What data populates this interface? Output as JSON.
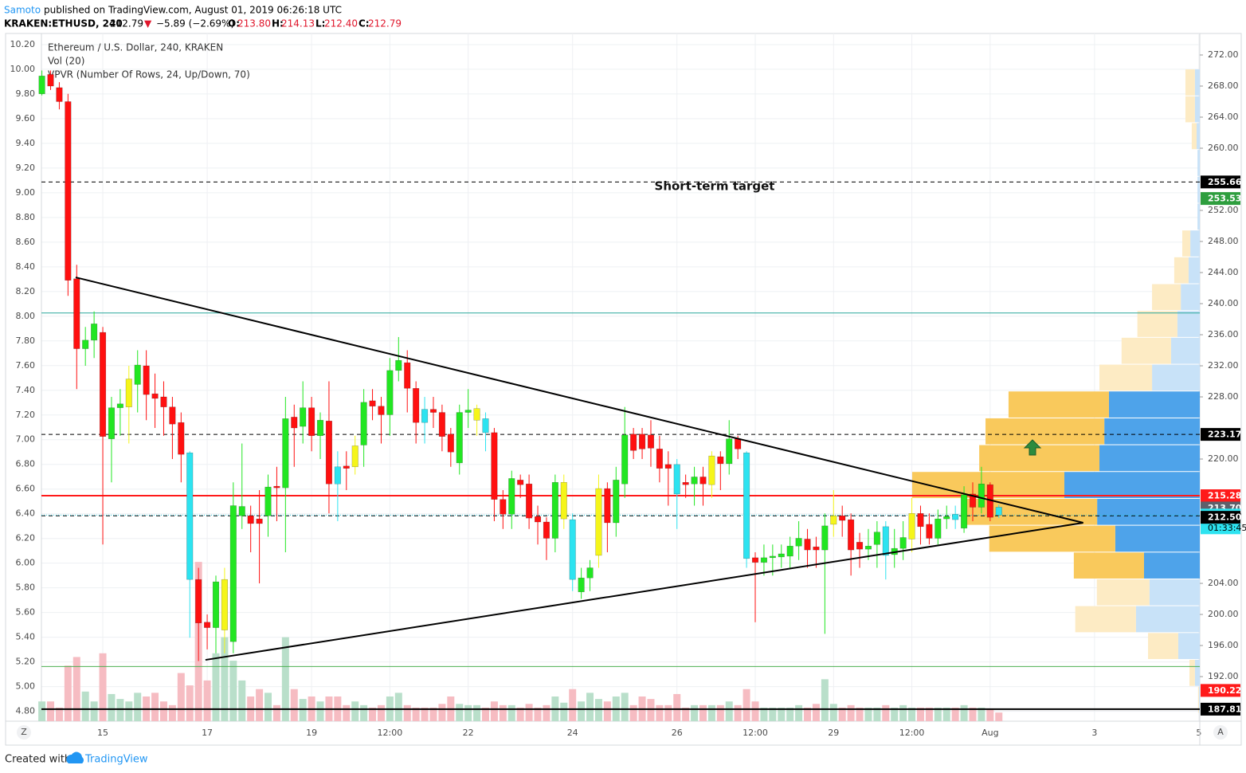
{
  "header": {
    "author": "Samoto",
    "published": "published on TradingView.com, August 01, 2019 06:26:18 UTC",
    "symbol": "KRAKEN:ETHUSD, 240",
    "last": "212.79",
    "arrow": "▼",
    "change": "−5.89 (−2.69%)",
    "ohlc": [
      {
        "key": "O:",
        "value": "213.80"
      },
      {
        "key": "H:",
        "value": "214.13"
      },
      {
        "key": "L:",
        "value": "212.40"
      },
      {
        "key": "C:",
        "value": "212.79"
      }
    ]
  },
  "chart_data": {
    "type": "candlestick",
    "legend": [
      "Ethereum / U.S. Dollar, 240, KRAKEN",
      "Vol (20)",
      "VPVR (Number Of Rows, 24, Up/Down, 70)"
    ],
    "annotation": "Short-term target",
    "xlim": [
      0,
      133.1
    ],
    "xticks": [
      {
        "value": 7,
        "label": "15"
      },
      {
        "value": 19,
        "label": "17"
      },
      {
        "value": 31,
        "label": "19"
      },
      {
        "value": 40,
        "label": "12:00"
      },
      {
        "value": 49,
        "label": "22"
      },
      {
        "value": 61,
        "label": "24"
      },
      {
        "value": 73,
        "label": "26"
      },
      {
        "value": 82,
        "label": "12:00"
      },
      {
        "value": 91,
        "label": "29"
      },
      {
        "value": 100,
        "label": "12:00"
      },
      {
        "value": 109,
        "label": "Aug"
      },
      {
        "value": 121,
        "label": "3"
      },
      {
        "value": 133,
        "label": "5"
      }
    ],
    "ylim": [
      186.26,
      274.77
    ],
    "yticks": [
      {
        "value": 192,
        "label": "192.00"
      },
      {
        "value": 196,
        "label": "196.00"
      },
      {
        "value": 200,
        "label": "200.00"
      },
      {
        "value": 204,
        "label": "204.00"
      },
      {
        "value": 220,
        "label": "220.00"
      },
      {
        "value": 228,
        "label": "228.00"
      },
      {
        "value": 232,
        "label": "232.00"
      },
      {
        "value": 236,
        "label": "236.00"
      },
      {
        "value": 240,
        "label": "240.00"
      },
      {
        "value": 244,
        "label": "244.00"
      },
      {
        "value": 248,
        "label": "248.00"
      },
      {
        "value": 252,
        "label": "252.00"
      },
      {
        "value": 260,
        "label": "260.00"
      },
      {
        "value": 264,
        "label": "264.00"
      },
      {
        "value": 268,
        "label": "268.00"
      },
      {
        "value": 272,
        "label": "272.00"
      }
    ],
    "y2lim": [
      4.72,
      10.29
    ],
    "y2ticks": [
      {
        "value": 4.8,
        "label": "4.80"
      },
      {
        "value": 5.0,
        "label": "5.00"
      },
      {
        "value": 5.2,
        "label": "5.20"
      },
      {
        "value": 5.4,
        "label": "5.40"
      },
      {
        "value": 5.6,
        "label": "5.60"
      },
      {
        "value": 5.8,
        "label": "5.80"
      },
      {
        "value": 6.0,
        "label": "6.00"
      },
      {
        "value": 6.2,
        "label": "6.20"
      },
      {
        "value": 6.4,
        "label": "6.40"
      },
      {
        "value": 6.6,
        "label": "6.60"
      },
      {
        "value": 6.8,
        "label": "6.80"
      },
      {
        "value": 7.0,
        "label": "7.00"
      },
      {
        "value": 7.2,
        "label": "7.20"
      },
      {
        "value": 7.4,
        "label": "7.40"
      },
      {
        "value": 7.6,
        "label": "7.60"
      },
      {
        "value": 7.8,
        "label": "7.80"
      },
      {
        "value": 8.0,
        "label": "8.00"
      },
      {
        "value": 8.2,
        "label": "8.20"
      },
      {
        "value": 8.4,
        "label": "8.40"
      },
      {
        "value": 8.6,
        "label": "8.60"
      },
      {
        "value": 8.8,
        "label": "8.80"
      },
      {
        "value": 9.0,
        "label": "9.00"
      },
      {
        "value": 9.2,
        "label": "9.20"
      },
      {
        "value": 9.4,
        "label": "9.40"
      },
      {
        "value": 9.6,
        "label": "9.60"
      },
      {
        "value": 9.8,
        "label": "9.80"
      },
      {
        "value": 10.0,
        "label": "10.00"
      },
      {
        "value": 10.2,
        "label": "10.20"
      }
    ],
    "grid": true,
    "x": [
      0,
      1,
      2,
      3,
      4,
      5,
      6,
      7,
      8,
      9,
      10,
      11,
      12,
      13,
      14,
      15,
      16,
      17,
      18,
      19,
      20,
      21,
      22,
      23,
      24,
      25,
      26,
      27,
      28,
      29,
      30,
      31,
      32,
      33,
      34,
      35,
      36,
      37,
      38,
      39,
      40,
      41,
      42,
      43,
      44,
      45,
      46,
      47,
      48,
      49,
      50,
      51,
      52,
      53,
      54,
      55,
      56,
      57,
      58,
      59,
      60,
      61,
      62,
      63,
      64,
      65,
      66,
      67,
      68,
      69,
      70,
      71,
      72,
      73,
      74,
      75,
      76,
      77,
      78,
      79,
      80,
      81,
      82,
      83,
      84,
      85,
      86,
      87,
      88,
      89,
      90,
      91,
      92,
      93,
      94,
      95,
      96,
      97,
      98,
      99,
      100,
      101,
      102,
      103,
      104,
      105,
      106,
      107,
      108,
      109,
      110
    ],
    "open": [
      267,
      269.5,
      267.8,
      266,
      243.2,
      234.2,
      235.3,
      236.3,
      222.6,
      226.6,
      226.7,
      229.6,
      232,
      228.4,
      228,
      226.7,
      224.7,
      220.8,
      204.5,
      199,
      198.3,
      198,
      196.5,
      212.7,
      212.7,
      212.3,
      212.7,
      216.5,
      216.3,
      225.4,
      224.2,
      226.6,
      223,
      224.9,
      219,
      219.1,
      219,
      221.8,
      227.5,
      226.8,
      225.7,
      231.4,
      232.4,
      229.1,
      226.4,
      226.4,
      226,
      223.2,
      219.5,
      226,
      225,
      225.2,
      223.4,
      214.8,
      212.9,
      217.3,
      216.8,
      212.6,
      211.9,
      209.8,
      212.3,
      212.2,
      202.9,
      204.7,
      207.6,
      216.2,
      211.8,
      216.8,
      223.2,
      223.2,
      223.1,
      221.3,
      219.3,
      219.3,
      217,
      216.8,
      217.7,
      216.7,
      220.3,
      219.4,
      222.6,
      220.8,
      207.3,
      206.7,
      207.3,
      207.4,
      207.5,
      208.8,
      209.7,
      208.7,
      208.3,
      211.6,
      212.7,
      212.2,
      209.3,
      208.4,
      209,
      211.3,
      207.7,
      208.5,
      209.7,
      213,
      211.6,
      209.8,
      212.3,
      212.9,
      211.1,
      215.5,
      213.8,
      216.7,
      213.8
    ],
    "high": [
      270,
      270,
      268.5,
      267,
      245,
      237,
      239,
      237,
      228,
      229,
      232,
      234,
      234,
      231,
      230,
      228,
      226,
      221,
      206,
      200,
      205,
      206,
      217,
      222,
      214,
      216,
      218,
      219,
      228,
      227,
      230,
      228,
      226,
      230,
      221,
      221,
      223,
      229,
      229,
      228,
      233,
      235.7,
      234,
      230,
      228,
      228,
      227,
      224,
      227,
      229,
      227,
      226,
      224,
      216,
      218.5,
      218,
      218,
      214,
      212.5,
      218,
      218,
      213,
      206,
      207,
      218,
      217,
      219,
      226.7,
      224,
      224,
      225,
      223,
      221,
      220,
      218,
      219,
      219,
      221,
      221,
      225,
      223,
      221,
      208,
      209,
      209,
      209,
      210,
      212,
      211,
      210,
      213,
      216,
      214,
      213,
      210.5,
      211,
      212,
      212,
      211,
      212,
      215,
      214,
      213,
      213.5,
      214,
      214,
      216.5,
      217,
      219,
      217,
      214.13
    ],
    "low": [
      266.8,
      267.5,
      265,
      241,
      229,
      232,
      233,
      209,
      217,
      223,
      222,
      226,
      225,
      224,
      223,
      220,
      217,
      197,
      194,
      195.5,
      195,
      195,
      195,
      211,
      208,
      204,
      210,
      212,
      208,
      219,
      222,
      221,
      220,
      213,
      212,
      216,
      218,
      219,
      225,
      222,
      223,
      230,
      226,
      222,
      222,
      224,
      221,
      219,
      218,
      224,
      223,
      221,
      212,
      211,
      211,
      215,
      211,
      209,
      207,
      208,
      211,
      203,
      202,
      203,
      206,
      208,
      210,
      215,
      220,
      220,
      219,
      217,
      214,
      211,
      215,
      214,
      214,
      215,
      216,
      218,
      220,
      206,
      199,
      205,
      205,
      206,
      206,
      207,
      206,
      206,
      197.5,
      210,
      210,
      205,
      206,
      207,
      206,
      204.5,
      206,
      207,
      208,
      209,
      209,
      209,
      211,
      211,
      210.5,
      212,
      213,
      212,
      212.4
    ],
    "close": [
      269.3,
      268,
      266,
      243,
      234.2,
      235.3,
      237.4,
      222.9,
      226.6,
      227.1,
      230.3,
      232.1,
      228.3,
      227.8,
      226.7,
      224.5,
      220.6,
      204.5,
      198.9,
      198.3,
      204.2,
      204.5,
      214,
      213.9,
      211.7,
      211.7,
      216.4,
      216.3,
      225.2,
      224,
      226.6,
      223,
      225,
      216.8,
      216.8,
      218.8,
      221.7,
      227.3,
      226.8,
      225.7,
      231.4,
      232.7,
      229.1,
      224.7,
      224.7,
      226,
      222.9,
      220.9,
      226,
      226.3,
      226.5,
      223.4,
      214.8,
      212.9,
      217.5,
      216.7,
      212.4,
      211.9,
      209.8,
      217,
      217,
      204.5,
      204.7,
      206,
      216.2,
      211.8,
      217.3,
      223.1,
      221.1,
      221.3,
      221.4,
      218.8,
      218.8,
      215.5,
      216.7,
      217.7,
      216.8,
      220.4,
      219.4,
      222.6,
      221.3,
      207.2,
      206.7,
      207.3,
      207.5,
      207.8,
      208.8,
      209.8,
      208.3,
      208.3,
      211.4,
      212.7,
      212.1,
      208.3,
      208.4,
      208.8,
      210.6,
      207.6,
      208.5,
      209.9,
      213,
      211.3,
      209.8,
      212.3,
      212.6,
      212.2,
      215.4,
      213.8,
      216.8,
      212.5,
      212.79
    ],
    "candle_colors": [
      "#22e622",
      "#ff1010",
      "#ff1010",
      "#ff1010",
      "#ff1010",
      "#22e622",
      "#22e622",
      "#ff1010",
      "#22e622",
      "#22e622",
      "#f5f51a",
      "#22e622",
      "#ff1010",
      "#ff1010",
      "#ff1010",
      "#ff1010",
      "#ff1010",
      "#2de3f0",
      "#ff1010",
      "#ff1010",
      "#22e622",
      "#f5f51a",
      "#22e622",
      "#22e622",
      "#ff1010",
      "#ff1010",
      "#22e622",
      "#ff1010",
      "#22e622",
      "#ff1010",
      "#22e622",
      "#ff1010",
      "#22e622",
      "#ff1010",
      "#2de3f0",
      "#ff1010",
      "#f5f51a",
      "#22e622",
      "#ff1010",
      "#ff1010",
      "#22e622",
      "#22e622",
      "#ff1010",
      "#ff1010",
      "#2de3f0",
      "#ff1010",
      "#ff1010",
      "#ff1010",
      "#22e622",
      "#22e622",
      "#f5f51a",
      "#2de3f0",
      "#ff1010",
      "#ff1010",
      "#22e622",
      "#ff1010",
      "#ff1010",
      "#ff1010",
      "#ff1010",
      "#22e622",
      "#f5f51a",
      "#2de3f0",
      "#22e622",
      "#22e622",
      "#f5f51a",
      "#ff1010",
      "#22e622",
      "#22e622",
      "#ff1010",
      "#ff1010",
      "#ff1010",
      "#ff1010",
      "#ff1010",
      "#2de3f0",
      "#ff1010",
      "#22e622",
      "#ff1010",
      "#f5f51a",
      "#ff1010",
      "#22e622",
      "#ff1010",
      "#2de3f0",
      "#ff1010",
      "#22e622",
      "#22e622",
      "#22e622",
      "#22e622",
      "#22e622",
      "#ff1010",
      "#ff1010",
      "#22e622",
      "#f5f51a",
      "#ff1010",
      "#ff1010",
      "#ff1010",
      "#22e622",
      "#22e622",
      "#2de3f0",
      "#22e622",
      "#22e622",
      "#f5f51a",
      "#ff1010",
      "#ff1010",
      "#22e622",
      "#22e622",
      "#2de3f0",
      "#22e622",
      "#ff1010",
      "#22e622",
      "#ff1010",
      "#2de3f0"
    ],
    "volume": [
      4.88,
      4.88,
      4.83,
      5.17,
      5.24,
      4.96,
      4.88,
      5.27,
      4.94,
      4.9,
      4.88,
      4.95,
      4.92,
      4.95,
      4.88,
      4.85,
      5.11,
      5.01,
      6.01,
      5.05,
      5.27,
      5.4,
      5.21,
      5.05,
      4.92,
      4.98,
      4.95,
      4.85,
      5.4,
      4.98,
      4.9,
      4.92,
      4.88,
      4.92,
      4.92,
      4.85,
      4.88,
      4.85,
      4.83,
      4.85,
      4.92,
      4.95,
      4.85,
      4.83,
      4.83,
      4.83,
      4.86,
      4.92,
      4.86,
      4.85,
      4.85,
      4.83,
      4.88,
      4.85,
      4.85,
      4.83,
      4.86,
      4.83,
      4.85,
      4.92,
      4.87,
      4.98,
      4.88,
      4.95,
      4.9,
      4.88,
      4.92,
      4.95,
      4.85,
      4.92,
      4.9,
      4.85,
      4.85,
      4.94,
      4.83,
      4.85,
      4.85,
      4.85,
      4.85,
      4.88,
      4.85,
      4.98,
      4.88,
      4.83,
      4.83,
      4.83,
      4.83,
      4.85,
      4.83,
      4.86,
      5.06,
      4.86,
      4.83,
      4.85,
      4.83,
      4.83,
      4.83,
      4.85,
      4.83,
      4.85,
      4.83,
      4.83,
      4.83,
      4.83,
      4.83,
      4.83,
      4.85,
      4.83,
      4.83,
      4.82,
      4.79
    ],
    "volume_up_color": "#b9dfca",
    "volume_down_color": "#f6bcc2",
    "vpvr": {
      "bins": [
        187.3,
        190.75,
        194.21,
        197.66,
        201.12,
        204.57,
        208.02,
        211.48,
        214.93,
        218.39,
        221.84,
        225.29,
        228.75,
        232.2,
        235.66,
        239.11,
        242.56,
        246.02,
        249.47,
        252.93,
        256.38,
        259.83,
        263.29,
        266.74,
        270.2
      ],
      "up": [
        0.3,
        1.7,
        7.5,
        22.2,
        17.5,
        19.4,
        29.4,
        35.7,
        47.1,
        34.9,
        33.2,
        31.6,
        16.6,
        10,
        7.8,
        6.6,
        3.9,
        3.3,
        0.8,
        0.8,
        0.8,
        1.1,
        1.7,
        1.7
      ],
      "down": [
        0.3,
        1.9,
        10.5,
        21.1,
        18.3,
        24.4,
        43.8,
        46.8,
        52.9,
        41.8,
        41.3,
        34.9,
        18.3,
        17.2,
        13.9,
        10,
        5,
        2.8,
        0,
        0,
        0,
        1.7,
        3.3,
        3.3
      ],
      "value_area": [
        204.57,
        228.75
      ],
      "up_color": "#4ea3ea",
      "down_color": "#f9c95c",
      "up_color_light": "#c8e2f8",
      "down_color_light": "#fdebc4"
    },
    "hlines": [
      {
        "value": 255.66,
        "style": "dashed",
        "color": "#000000"
      },
      {
        "value": 223.17,
        "style": "dashed",
        "color": "#000000"
      },
      {
        "value": 212.7,
        "style": "dashed",
        "color": "#000000"
      },
      {
        "value": 212.79,
        "style": "dotted",
        "color": "#26c6da"
      },
      {
        "value": 215.28,
        "style": "solid",
        "color": "#ff1a1a"
      },
      {
        "value": 238.8,
        "style": "solid",
        "color": "#26a69a"
      },
      {
        "value": 193.3,
        "style": "solid",
        "color": "#4caf50"
      },
      {
        "value": 187.81,
        "style": "solid",
        "color": "#000000"
      }
    ],
    "trendlines": [
      {
        "x": [
          3.88,
          119.7
        ],
        "y": [
          243.38,
          211.8
        ]
      },
      {
        "x": [
          18.8,
          119.7
        ],
        "y": [
          194.15,
          211.8
        ]
      }
    ],
    "price_labels": [
      {
        "value": 255.66,
        "color": "#000000",
        "text_color": "#ffffff"
      },
      {
        "value": 253.53,
        "color": "#2e9e3e",
        "text_color": "#ffffff"
      },
      {
        "value": 223.17,
        "color": "#000000",
        "text_color": "#ffffff"
      },
      {
        "value": 215.28,
        "color": "#ff1a1a",
        "text_color": "#ffffff"
      },
      {
        "value": 213.7,
        "label": "213.70",
        "color": "#5d606b",
        "text_color": "#ffffff"
      },
      {
        "value": 212.79,
        "color": "#2de3f0",
        "text_color": "#000000"
      },
      {
        "value": 212.5,
        "label": "212.50",
        "color": "#000000",
        "text_color": "#ffffff"
      },
      {
        "value": 190.22,
        "color": "#ff1a1a",
        "text_color": "#ffffff"
      },
      {
        "value": 187.81,
        "color": "#000000",
        "text_color": "#ffffff"
      }
    ],
    "countdown": "01:33:45"
  },
  "footer": {
    "created": "Created with",
    "brand": "TradingView",
    "left_button": "Z",
    "right_button": "A"
  }
}
